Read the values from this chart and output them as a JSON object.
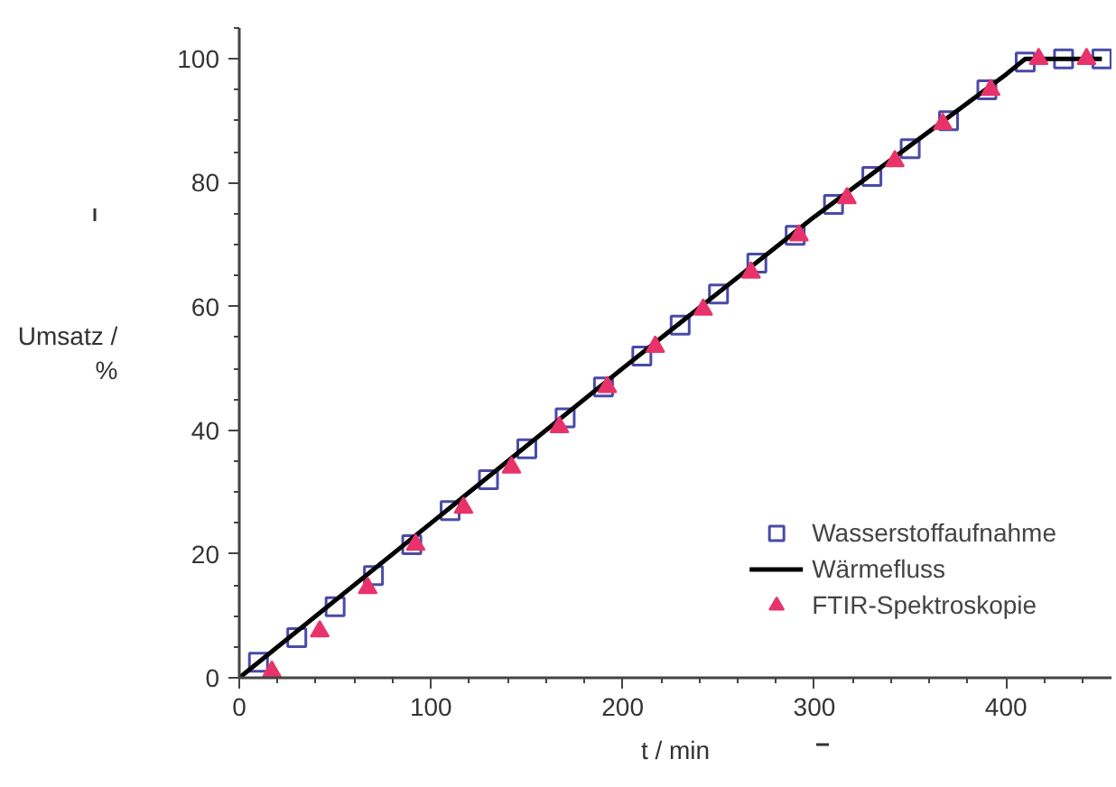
{
  "chart_data": {
    "type": "scatter",
    "xlabel": "t / min",
    "ylabel": "Umsatz / %",
    "xlim": [
      0,
      455
    ],
    "ylim": [
      0,
      105
    ],
    "xticks": [
      0,
      100,
      200,
      300,
      400
    ],
    "yticks": [
      0,
      20,
      40,
      60,
      80,
      100
    ],
    "grid": false,
    "legend": "bottom right",
    "series": [
      {
        "name": "Wasserstoffaufnahme",
        "marker": "square",
        "color": "#4a4aa8",
        "x": [
          10,
          30,
          50,
          70,
          90,
          110,
          130,
          150,
          170,
          190,
          210,
          230,
          250,
          270,
          290,
          310,
          330,
          350,
          370,
          390,
          410,
          430,
          450
        ],
        "values": [
          2.5,
          6.5,
          11.5,
          16.5,
          21.5,
          27,
          32,
          37,
          42,
          47,
          52,
          57,
          62,
          67,
          71.5,
          76.5,
          81,
          85.5,
          90,
          95,
          99.5,
          100,
          100
        ]
      },
      {
        "name": "Wärmefluss",
        "type": "line",
        "line_style": "solid",
        "color": "#000000",
        "x": [
          0,
          100,
          200,
          300,
          400,
          410,
          450
        ],
        "values": [
          0,
          25,
          50,
          74.5,
          97.5,
          100,
          100
        ]
      },
      {
        "name": "FTIR-Spektroskopie",
        "marker": "triangle",
        "color": "#e8336a",
        "x": [
          17,
          42,
          67,
          92,
          117,
          142,
          167,
          192,
          217,
          242,
          267,
          292,
          317,
          342,
          367,
          392,
          417,
          442
        ],
        "values": [
          1,
          7.5,
          14.5,
          21.5,
          27.5,
          34,
          40.5,
          47,
          53.5,
          59.5,
          65.5,
          71.5,
          77.5,
          83.5,
          89.5,
          95,
          100,
          100
        ]
      }
    ]
  }
}
